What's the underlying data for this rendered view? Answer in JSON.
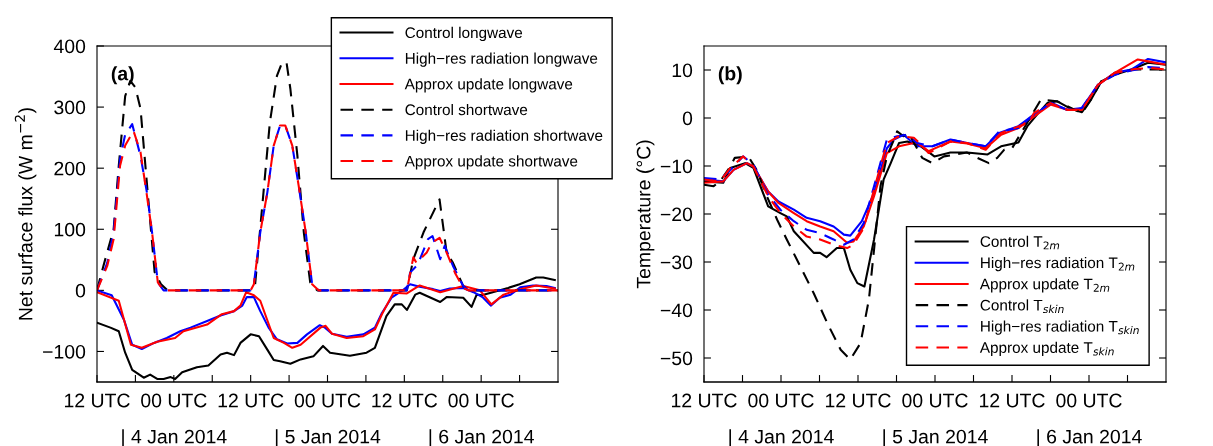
{
  "chart_data": [
    {
      "type": "line",
      "ylabel": "Net surface flux (W m$^{−2}$)",
      "xlim": [
        "2014-01-03T12:00",
        "2014-01-06T12:00"
      ],
      "ylim": [
        -150,
        400
      ],
      "xticks": [
        {
          "value": "2014-01-03T12:00",
          "label": "12 UTC"
        },
        {
          "value": "2014-01-03T18:00",
          "label": null
        },
        {
          "value": "2014-01-04T00:00",
          "label": "00 UTC"
        },
        {
          "value": "2014-01-04T06:00",
          "label": null
        },
        {
          "value": "2014-01-04T12:00",
          "label": "12 UTC"
        },
        {
          "value": "2014-01-04T18:00",
          "label": null
        },
        {
          "value": "2014-01-05T00:00",
          "label": "00 UTC"
        },
        {
          "value": "2014-01-05T06:00",
          "label": null
        },
        {
          "value": "2014-01-05T12:00",
          "label": "12 UTC"
        },
        {
          "value": "2014-01-05T18:00",
          "label": null
        },
        {
          "value": "2014-01-06T00:00",
          "label": "00 UTC"
        },
        {
          "value": "2014-01-06T06:00",
          "label": null
        }
      ],
      "x2lim": [
        "2014-01-03T12:00",
        "2014-01-06T12:00"
      ],
      "x2ticks": [
        {
          "value": "2014-01-04T00:00",
          "label": "| 4 Jan 2014"
        },
        {
          "value": "2014-01-05T00:00",
          "label": "| 5 Jan 2014"
        },
        {
          "value": "2014-01-06T00:00",
          "label": "| 6 Jan 2014"
        }
      ],
      "yticks": [
        -100,
        0,
        100,
        200,
        300,
        400
      ],
      "legend": "top right",
      "grid": false,
      "annotations": [
        "(a)"
      ],
      "series": [
        {
          "name": "Control longwave",
          "color": "#000000",
          "line_style": "solid",
          "x": [
            "2014-01-03T12:00",
            "2014-01-03T14:06",
            "2014-01-03T15:24",
            "2014-01-03T16:24",
            "2014-01-03T17:30",
            "2014-01-03T19:18",
            "2014-01-03T20:18",
            "2014-01-03T21:24",
            "2014-01-03T22:24",
            "2014-01-03T23:30",
            "2014-01-04T00:12",
            "2014-01-04T01:18",
            "2014-01-04T03:36",
            "2014-01-04T05:24",
            "2014-01-04T07:18",
            "2014-01-04T08:18",
            "2014-01-04T09:24",
            "2014-01-04T10:24",
            "2014-01-04T12:00",
            "2014-01-04T13:18",
            "2014-01-04T14:36",
            "2014-01-04T15:36",
            "2014-01-04T16:36",
            "2014-01-04T18:12",
            "2014-01-04T19:48",
            "2014-01-04T21:48",
            "2014-01-04T23:18",
            "2014-01-05T00:24",
            "2014-01-05T03:30",
            "2014-01-05T06:06",
            "2014-01-05T07:24",
            "2014-01-05T09:12",
            "2014-01-05T10:30",
            "2014-01-05T11:36",
            "2014-01-05T12:24",
            "2014-01-05T13:42",
            "2014-01-05T14:24",
            "2014-01-05T17:36",
            "2014-01-05T18:36",
            "2014-01-05T21:12",
            "2014-01-05T22:30",
            "2014-01-05T23:18",
            "2014-01-06T00:06",
            "2014-01-06T04:12",
            "2014-01-06T06:00",
            "2014-01-06T08:36",
            "2014-01-06T09:42",
            "2014-01-06T11:30"
          ],
          "values": [
            -53,
            -61,
            -67,
            -102,
            -130,
            -143,
            -138,
            -145,
            -145,
            -142,
            -145,
            -134,
            -126,
            -123,
            -105,
            -102,
            -106,
            -86,
            -72,
            -75,
            -97,
            -114,
            -116,
            -120,
            -113,
            -108,
            -91,
            -102,
            -107,
            -102,
            -94,
            -42,
            -23,
            -23,
            -32,
            -7,
            -4,
            -19,
            -11,
            -12,
            -27,
            -7,
            -8,
            4,
            10,
            21,
            21,
            17
          ]
        },
        {
          "name": "High−res radiation longwave",
          "color": "#0000ff",
          "line_style": "solid",
          "x": [
            "2014-01-03T12:00",
            "2014-01-03T14:18",
            "2014-01-03T16:12",
            "2014-01-03T17:30",
            "2014-01-03T19:00",
            "2014-01-03T20:54",
            "2014-01-03T22:54",
            "2014-01-04T01:00",
            "2014-01-04T02:36",
            "2014-01-04T05:12",
            "2014-01-04T07:18",
            "2014-01-04T09:24",
            "2014-01-04T10:42",
            "2014-01-04T11:24",
            "2014-01-04T12:30",
            "2014-01-04T13:30",
            "2014-01-04T14:48",
            "2014-01-04T16:06",
            "2014-01-04T17:42",
            "2014-01-04T19:18",
            "2014-01-04T20:48",
            "2014-01-04T22:48",
            "2014-01-04T23:36",
            "2014-01-05T00:42",
            "2014-01-05T03:00",
            "2014-01-05T05:36",
            "2014-01-05T07:24",
            "2014-01-05T08:30",
            "2014-01-05T10:00",
            "2014-01-05T11:36",
            "2014-01-05T12:54",
            "2014-01-05T14:24",
            "2014-01-05T16:30",
            "2014-01-05T17:36",
            "2014-01-05T19:06",
            "2014-01-05T21:12",
            "2014-01-05T22:48",
            "2014-01-06T00:12",
            "2014-01-06T01:30",
            "2014-01-06T02:54",
            "2014-01-06T04:36",
            "2014-01-06T06:06",
            "2014-01-06T08:06",
            "2014-01-06T10:12",
            "2014-01-06T11:30"
          ],
          "values": [
            0,
            -8,
            -48,
            -89,
            -96,
            -86,
            -78,
            -67,
            -61,
            -50,
            -41,
            -34,
            -25,
            -11,
            -11,
            -34,
            -61,
            -80,
            -87,
            -86,
            -72,
            -57,
            -61,
            -71,
            -76,
            -72,
            -61,
            -37,
            -12,
            -1,
            10,
            6,
            2,
            -1,
            3,
            4,
            -3,
            -11,
            -25,
            -12,
            -7,
            5,
            8,
            7,
            4
          ]
        },
        {
          "name": "Approx update longwave",
          "color": "#ff0000",
          "line_style": "solid",
          "x": [
            "2014-01-03T12:00",
            "2014-01-03T15:24",
            "2014-01-03T17:18",
            "2014-01-03T19:00",
            "2014-01-03T21:24",
            "2014-01-04T00:12",
            "2014-01-04T01:30",
            "2014-01-04T05:12",
            "2014-01-04T07:30",
            "2014-01-04T09:24",
            "2014-01-04T10:24",
            "2014-01-04T11:18",
            "2014-01-04T12:30",
            "2014-01-04T13:30",
            "2014-01-04T15:36",
            "2014-01-04T17:12",
            "2014-01-04T18:30",
            "2014-01-04T19:48",
            "2014-01-04T22:54",
            "2014-01-04T23:42",
            "2014-01-05T00:42",
            "2014-01-05T03:00",
            "2014-01-05T05:36",
            "2014-01-05T07:24",
            "2014-01-05T08:30",
            "2014-01-05T10:18",
            "2014-01-05T12:24",
            "2014-01-05T14:24",
            "2014-01-05T17:36",
            "2014-01-05T21:12",
            "2014-01-05T23:48",
            "2014-01-06T01:36",
            "2014-01-06T03:30",
            "2014-01-06T06:06",
            "2014-01-06T08:36",
            "2014-01-06T11:30"
          ],
          "values": [
            -3,
            -17,
            -89,
            -94,
            -84,
            -78,
            -67,
            -56,
            -39,
            -34,
            -25,
            -3,
            -8,
            -17,
            -78,
            -86,
            -94,
            -89,
            -61,
            -58,
            -71,
            -78,
            -75,
            -64,
            -39,
            -4,
            -5,
            8,
            -3,
            7,
            0,
            -23,
            -7,
            2,
            8,
            3
          ]
        },
        {
          "name": "Control shortwave",
          "color": "#000000",
          "line_style": "dashed",
          "x": [
            "2014-01-03T12:00",
            "2014-01-03T13:00",
            "2014-01-03T14:36",
            "2014-01-03T15:24",
            "2014-01-03T16:24",
            "2014-01-03T17:12",
            "2014-01-03T18:00",
            "2014-01-03T18:48",
            "2014-01-03T20:00",
            "2014-01-03T21:00",
            "2014-01-03T22:00",
            "2014-01-03T23:00",
            "2014-01-04T12:00",
            "2014-01-04T12:42",
            "2014-01-04T14:00",
            "2014-01-04T15:00",
            "2014-01-04T16:06",
            "2014-01-04T16:54",
            "2014-01-04T17:36",
            "2014-01-04T18:12",
            "2014-01-04T19:18",
            "2014-01-04T20:18",
            "2014-01-04T21:18",
            "2014-01-04T22:24",
            "2014-01-05T12:24",
            "2014-01-05T13:24",
            "2014-01-05T15:00",
            "2014-01-05T17:30",
            "2014-01-05T18:36",
            "2014-01-05T19:36",
            "2014-01-05T21:12",
            "2014-01-05T22:00",
            "2014-01-06T12:00"
          ],
          "values": [
            0,
            40,
            100,
            204,
            318,
            343,
            332,
            297,
            150,
            30,
            10,
            0,
            0,
            10,
            160,
            275,
            351,
            373,
            373,
            330,
            220,
            95,
            13,
            0,
            0,
            51,
            95,
            149,
            62,
            45,
            7,
            0,
            0
          ]
        },
        {
          "name": "High−res radiation shortwave",
          "color": "#0000ff",
          "line_style": "dashed",
          "x": [
            "2014-01-03T12:00",
            "2014-01-03T13:36",
            "2014-01-03T14:36",
            "2014-01-03T15:36",
            "2014-01-03T16:24",
            "2014-01-03T17:30",
            "2014-01-03T18:48",
            "2014-01-03T19:48",
            "2014-01-03T20:36",
            "2014-01-03T21:30",
            "2014-01-03T22:24",
            "2014-01-04T12:00",
            "2014-01-04T12:30",
            "2014-01-04T13:30",
            "2014-01-04T14:36",
            "2014-01-04T15:36",
            "2014-01-04T16:36",
            "2014-01-04T17:24",
            "2014-01-04T18:30",
            "2014-01-04T19:30",
            "2014-01-04T20:36",
            "2014-01-04T21:36",
            "2014-01-04T22:36",
            "2014-01-05T12:24",
            "2014-01-05T12:54",
            "2014-01-05T13:54",
            "2014-01-05T14:24",
            "2014-01-05T15:42",
            "2014-01-05T16:24",
            "2014-01-05T17:36",
            "2014-01-05T18:18",
            "2014-01-05T19:36",
            "2014-01-05T21:12",
            "2014-01-05T22:00",
            "2014-01-06T12:00"
          ],
          "values": [
            0,
            45,
            95,
            215,
            255,
            272,
            220,
            160,
            95,
            13,
            0,
            0,
            10,
            95,
            160,
            237,
            270,
            270,
            237,
            171,
            95,
            10,
            0,
            0,
            29,
            40,
            50,
            84,
            89,
            51,
            73,
            40,
            7,
            0,
            0
          ]
        },
        {
          "name": "Approx update shortwave",
          "color": "#ff0000",
          "line_style": "dashed",
          "x": [
            "2014-01-03T12:00",
            "2014-01-03T13:36",
            "2014-01-03T14:36",
            "2014-01-03T15:36",
            "2014-01-03T16:24",
            "2014-01-03T17:42",
            "2014-01-03T18:48",
            "2014-01-03T19:48",
            "2014-01-03T20:36",
            "2014-01-03T21:30",
            "2014-01-03T22:24",
            "2014-01-04T12:00",
            "2014-01-04T12:30",
            "2014-01-04T13:30",
            "2014-01-04T14:36",
            "2014-01-04T15:36",
            "2014-01-04T16:36",
            "2014-01-04T17:24",
            "2014-01-04T18:30",
            "2014-01-04T19:30",
            "2014-01-04T20:36",
            "2014-01-04T21:36",
            "2014-01-04T22:36",
            "2014-01-05T12:24",
            "2014-01-05T13:24",
            "2014-01-05T13:54",
            "2014-01-05T15:30",
            "2014-01-05T16:18",
            "2014-01-05T17:30",
            "2014-01-05T18:36",
            "2014-01-05T19:54",
            "2014-01-05T21:12",
            "2014-01-05T22:00",
            "2014-01-06T12:00"
          ],
          "values": [
            0,
            40,
            84,
            204,
            237,
            261,
            226,
            155,
            95,
            13,
            0,
            0,
            10,
            95,
            160,
            237,
            270,
            270,
            237,
            171,
            95,
            10,
            0,
            0,
            54,
            45,
            62,
            78,
            86,
            62,
            29,
            4,
            0,
            0
          ]
        }
      ]
    },
    {
      "type": "line",
      "ylabel": "Temperature (°C)",
      "xlim": [
        "2014-01-03T12:00",
        "2014-01-06T12:00"
      ],
      "ylim": [
        -55,
        15
      ],
      "xticks": [
        {
          "value": "2014-01-03T12:00",
          "label": "12 UTC"
        },
        {
          "value": "2014-01-03T18:00",
          "label": null
        },
        {
          "value": "2014-01-04T00:00",
          "label": "00 UTC"
        },
        {
          "value": "2014-01-04T06:00",
          "label": null
        },
        {
          "value": "2014-01-04T12:00",
          "label": "12 UTC"
        },
        {
          "value": "2014-01-04T18:00",
          "label": null
        },
        {
          "value": "2014-01-05T00:00",
          "label": "00 UTC"
        },
        {
          "value": "2014-01-05T06:00",
          "label": null
        },
        {
          "value": "2014-01-05T12:00",
          "label": "12 UTC"
        },
        {
          "value": "2014-01-05T18:00",
          "label": null
        },
        {
          "value": "2014-01-06T00:00",
          "label": "00 UTC"
        },
        {
          "value": "2014-01-06T06:00",
          "label": null
        }
      ],
      "x2lim": [
        "2014-01-03T12:00",
        "2014-01-06T12:00"
      ],
      "x2ticks": [
        {
          "value": "2014-01-04T00:00",
          "label": "| 4 Jan 2014"
        },
        {
          "value": "2014-01-05T00:00",
          "label": "| 5 Jan 2014"
        },
        {
          "value": "2014-01-06T00:00",
          "label": "| 6 Jan 2014"
        }
      ],
      "yticks": [
        -50,
        -40,
        -30,
        -20,
        -10,
        0,
        10
      ],
      "legend": "bottom right",
      "grid": false,
      "annotations": [
        "(b)"
      ],
      "series": [
        {
          "name": "Control T$_{2m}$",
          "color": "#000000",
          "line_style": "solid",
          "x": [
            "2014-01-03T12:00",
            "2014-01-03T15:00",
            "2014-01-03T16:06",
            "2014-01-03T18:24",
            "2014-01-03T19:42",
            "2014-01-03T22:00",
            "2014-01-03T23:54",
            "2014-01-04T00:54",
            "2014-01-04T02:00",
            "2014-01-04T05:06",
            "2014-01-04T06:06",
            "2014-01-04T07:06",
            "2014-01-04T08:42",
            "2014-01-04T09:48",
            "2014-01-04T10:48",
            "2014-01-04T11:54",
            "2014-01-04T13:00",
            "2014-01-04T14:30",
            "2014-01-04T16:00",
            "2014-01-04T17:06",
            "2014-01-04T18:24",
            "2014-01-04T19:42",
            "2014-01-04T21:48",
            "2014-01-04T23:54",
            "2014-01-05T02:24",
            "2014-01-05T05:00",
            "2014-01-05T08:12",
            "2014-01-05T10:18",
            "2014-01-05T13:00",
            "2014-01-05T14:24",
            "2014-01-05T15:54",
            "2014-01-05T17:30",
            "2014-01-05T19:00",
            "2014-01-05T20:54",
            "2014-01-05T22:54",
            "2014-01-06T00:18",
            "2014-01-06T01:54",
            "2014-01-06T04:00",
            "2014-01-06T06:36",
            "2014-01-06T09:12",
            "2014-01-06T12:00"
          ],
          "values": [
            -13.2,
            -13.5,
            -10.4,
            -9.4,
            -10.4,
            -18.4,
            -19.8,
            -20.5,
            -23.6,
            -28.1,
            -28.1,
            -29,
            -27.1,
            -27.1,
            -31.6,
            -34.4,
            -35.1,
            -25.3,
            -12.8,
            -9.4,
            -5.2,
            -4.9,
            -5.9,
            -8,
            -7.2,
            -7.2,
            -7.6,
            -5.9,
            -5.1,
            -1.7,
            0.7,
            3.1,
            3.5,
            2.1,
            1.2,
            3.8,
            7.6,
            9,
            10.1,
            11.5,
            11.1
          ]
        },
        {
          "name": "High−res radiation T$_{2m}$",
          "color": "#0000ff",
          "line_style": "solid",
          "x": [
            "2014-01-03T12:00",
            "2014-01-03T15:00",
            "2014-01-03T16:36",
            "2014-01-03T18:42",
            "2014-01-03T19:42",
            "2014-01-03T22:00",
            "2014-01-03T23:36",
            "2014-01-04T02:00",
            "2014-01-04T04:00",
            "2014-01-04T06:06",
            "2014-01-04T08:12",
            "2014-01-04T09:48",
            "2014-01-04T10:48",
            "2014-01-04T12:36",
            "2014-01-04T14:30",
            "2014-01-04T16:30",
            "2014-01-04T17:36",
            "2014-01-04T19:06",
            "2014-01-04T21:12",
            "2014-01-04T23:36",
            "2014-01-05T02:24",
            "2014-01-05T05:00",
            "2014-01-05T07:54",
            "2014-01-05T10:00",
            "2014-01-05T13:00",
            "2014-01-05T15:24",
            "2014-01-05T18:18",
            "2014-01-05T20:36",
            "2014-01-05T22:54",
            "2014-01-06T01:24",
            "2014-01-06T04:00",
            "2014-01-06T06:36",
            "2014-01-06T09:12",
            "2014-01-06T12:00"
          ],
          "values": [
            -12.8,
            -13.2,
            -10.8,
            -9.4,
            -10.1,
            -15.3,
            -17.4,
            -19.1,
            -20.8,
            -21.5,
            -22.6,
            -24.3,
            -24.5,
            -21.5,
            -15.6,
            -6.3,
            -4.5,
            -3.5,
            -5.9,
            -5.9,
            -4.5,
            -5.2,
            -5.9,
            -3.1,
            -1.7,
            0.7,
            3.1,
            1.7,
            2.1,
            6.9,
            9.4,
            10.1,
            12.3,
            11.6
          ]
        },
        {
          "name": "Approx update T$_{2m}$",
          "color": "#ff0000",
          "line_style": "solid",
          "x": [
            "2014-01-03T12:00",
            "2014-01-03T15:00",
            "2014-01-03T16:36",
            "2014-01-03T18:42",
            "2014-01-03T19:42",
            "2014-01-03T22:00",
            "2014-01-03T23:36",
            "2014-01-04T02:00",
            "2014-01-04T04:00",
            "2014-01-04T06:06",
            "2014-01-04T08:12",
            "2014-01-04T10:18",
            "2014-01-04T11:18",
            "2014-01-04T12:54",
            "2014-01-04T14:30",
            "2014-01-04T16:30",
            "2014-01-04T18:24",
            "2014-01-04T20:42",
            "2014-01-04T21:12",
            "2014-01-04T23:00",
            "2014-01-05T02:24",
            "2014-01-05T05:00",
            "2014-01-05T07:54",
            "2014-01-05T10:18",
            "2014-01-05T13:00",
            "2014-01-05T15:24",
            "2014-01-05T18:00",
            "2014-01-05T20:36",
            "2014-01-05T22:54",
            "2014-01-06T01:24",
            "2014-01-06T04:00",
            "2014-01-06T07:36",
            "2014-01-06T09:12",
            "2014-01-06T12:00"
          ],
          "values": [
            -13.5,
            -13.2,
            -10.8,
            -9.4,
            -10.1,
            -15.3,
            -17.7,
            -19.8,
            -21.5,
            -22.6,
            -23.6,
            -26,
            -25.7,
            -22.6,
            -16.3,
            -7.3,
            -5.9,
            -5.2,
            -5.2,
            -6.9,
            -4.9,
            -5.3,
            -6.3,
            -3.5,
            -2.1,
            0.3,
            2.8,
            1.7,
            1.7,
            6.9,
            9.4,
            12.2,
            11.8,
            11.1
          ]
        },
        {
          "name": "Control T$_{skin}$",
          "color": "#000000",
          "line_style": "dashed",
          "x": [
            "2014-01-03T12:00",
            "2014-01-03T13:30",
            "2014-01-03T14:30",
            "2014-01-03T16:06",
            "2014-01-03T16:48",
            "2014-01-03T18:54",
            "2014-01-03T20:12",
            "2014-01-03T21:48",
            "2014-01-03T23:24",
            "2014-01-04T00:54",
            "2014-01-04T03:00",
            "2014-01-04T05:06",
            "2014-01-04T07:12",
            "2014-01-04T09:18",
            "2014-01-04T10:48",
            "2014-01-04T12:24",
            "2014-01-04T13:42",
            "2014-01-04T14:30",
            "2014-01-04T15:30",
            "2014-01-04T16:30",
            "2014-01-04T17:36",
            "2014-01-04T18:06",
            "2014-01-04T19:06",
            "2014-01-04T19:54",
            "2014-01-04T22:00",
            "2014-01-04T23:36",
            "2014-01-05T01:24",
            "2014-01-05T05:00",
            "2014-01-05T06:36",
            "2014-01-05T08:24",
            "2014-01-05T09:42",
            "2014-01-05T10:48",
            "2014-01-05T12:00",
            "2014-01-05T16:30",
            "2014-01-05T19:00",
            "2014-01-05T22:54",
            "2014-01-06T00:18",
            "2014-01-06T01:54",
            "2014-01-06T04:30",
            "2014-01-06T07:06",
            "2014-01-06T09:42",
            "2014-01-06T12:00"
          ],
          "values": [
            -13.9,
            -14.2,
            -13.2,
            -10.1,
            -8.3,
            -8,
            -10.8,
            -16.3,
            -21.2,
            -25.3,
            -30.9,
            -36.5,
            -42.7,
            -48.3,
            -50.3,
            -46.9,
            -37.8,
            -27.4,
            -14.2,
            -8,
            -4.5,
            -2.8,
            -3.8,
            -3.1,
            -8.3,
            -9.4,
            -8,
            -7.2,
            -8.3,
            -9.4,
            -8.3,
            -6.6,
            -6.3,
            3.8,
            3.5,
            1,
            3.8,
            7.6,
            9.4,
            10.1,
            10.1,
            10.1
          ]
        },
        {
          "name": "High−res radiation T$_{skin}$",
          "color": "#0000ff",
          "line_style": "dashed",
          "x": [
            "2014-01-03T12:00",
            "2014-01-03T14:30",
            "2014-01-03T16:06",
            "2014-01-03T18:06",
            "2014-01-03T19:42",
            "2014-01-03T22:00",
            "2014-01-03T23:54",
            "2014-01-04T02:00",
            "2014-01-04T04:00",
            "2014-01-04T06:06",
            "2014-01-04T08:12",
            "2014-01-04T09:48",
            "2014-01-04T11:18",
            "2014-01-04T12:54",
            "2014-01-04T14:30",
            "2014-01-04T16:30",
            "2014-01-04T18:06",
            "2014-01-04T19:42",
            "2014-01-04T21:12",
            "2014-01-04T23:36",
            "2014-01-05T02:24",
            "2014-01-05T05:00",
            "2014-01-05T07:54",
            "2014-01-05T10:00",
            "2014-01-05T13:00",
            "2014-01-05T15:24",
            "2014-01-05T18:00",
            "2014-01-05T20:36",
            "2014-01-05T22:54",
            "2014-01-06T01:24",
            "2014-01-06T04:00",
            "2014-01-06T06:36",
            "2014-01-06T09:12",
            "2014-01-06T12:00"
          ],
          "values": [
            -12.5,
            -12.8,
            -10.8,
            -8,
            -9.7,
            -16,
            -19.1,
            -21.5,
            -23.3,
            -24,
            -25.3,
            -26.4,
            -25.3,
            -21.9,
            -14.2,
            -4.5,
            -3.8,
            -3.5,
            -5.2,
            -5.9,
            -4.5,
            -5.2,
            -5.9,
            -2.8,
            -2.1,
            0.7,
            3.1,
            1.7,
            2.1,
            6.9,
            9,
            9.9,
            10.6,
            10.4
          ]
        },
        {
          "name": "Approx update T$_{skin}$",
          "color": "#ff0000",
          "line_style": "dashed",
          "x": [
            "2014-01-03T12:00",
            "2014-01-03T14:30",
            "2014-01-03T16:06",
            "2014-01-03T18:06",
            "2014-01-03T19:42",
            "2014-01-03T22:00",
            "2014-01-03T23:54",
            "2014-01-04T02:00",
            "2014-01-04T04:00",
            "2014-01-04T06:06",
            "2014-01-04T08:12",
            "2014-01-04T10:18",
            "2014-01-04T11:18",
            "2014-01-04T12:54",
            "2014-01-04T14:30",
            "2014-01-04T16:30",
            "2014-01-04T18:24",
            "2014-01-04T20:42",
            "2014-01-04T22:06",
            "2014-01-04T23:00",
            "2014-01-05T02:24",
            "2014-01-05T05:00",
            "2014-01-05T07:54",
            "2014-01-05T10:18",
            "2014-01-05T14:36",
            "2014-01-05T15:24",
            "2014-01-05T18:00",
            "2014-01-05T20:36",
            "2014-01-05T22:54",
            "2014-01-06T01:24",
            "2014-01-06T04:00",
            "2014-01-06T07:06",
            "2014-01-06T09:42",
            "2014-01-06T12:00"
          ],
          "values": [
            -12.8,
            -13.2,
            -10.4,
            -8,
            -10.1,
            -16.3,
            -19.8,
            -22.6,
            -24.7,
            -25.3,
            -26.4,
            -27.1,
            -26.4,
            -22.9,
            -14.9,
            -5.2,
            -3.8,
            -4.1,
            -5.9,
            -7.3,
            -4.9,
            -5.2,
            -6.6,
            -3.1,
            -1,
            1,
            3.1,
            1.7,
            1.7,
            6.9,
            9.4,
            10.2,
            10.4,
            10.1
          ]
        }
      ]
    }
  ]
}
